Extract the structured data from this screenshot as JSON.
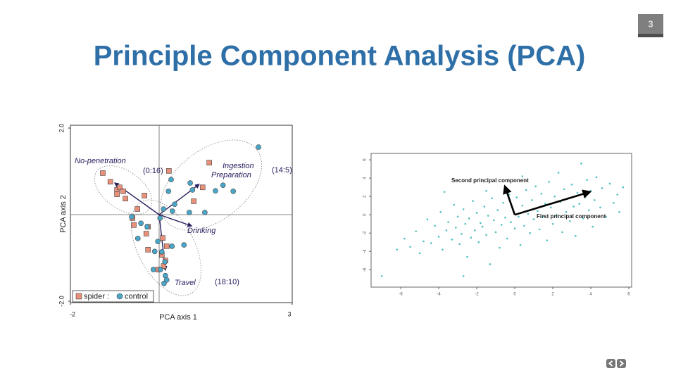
{
  "slide": {
    "page_number": "3",
    "title": "Principle Component Analysis (PCA)"
  },
  "chart_data": [
    {
      "type": "scatter",
      "xlabel": "PCA axis 1",
      "ylabel": "PCA axis 2",
      "xlim": [
        -2,
        3
      ],
      "ylim": [
        -2,
        2
      ],
      "xticks": [
        -2,
        3
      ],
      "yticks": [
        {
          "value": -2,
          "label": "-2.0"
        },
        {
          "value": 2,
          "label": "2.0"
        }
      ],
      "series": [
        {
          "name": "spider :",
          "color": "#e8907a",
          "marker": "square",
          "x": [
            -1.27,
            -1.1,
            -0.95,
            -0.89,
            -0.81,
            -0.76,
            -0.95,
            -0.33,
            -0.49,
            -0.6,
            -0.57,
            -0.25,
            -0.29,
            -0.25,
            0.06,
            0.14,
            0.17,
            0.08,
            0.22,
            0.78,
            0.98,
            1.13,
            0.1,
            -0.02
          ],
          "y": [
            0.96,
            0.76,
            0.57,
            0.63,
            0.54,
            0.37,
            0.47,
            0.44,
            0.13,
            -0.08,
            -0.24,
            -0.28,
            -0.44,
            -0.81,
            -0.93,
            -1.06,
            -0.73,
            -0.54,
            1.01,
            0.31,
            0.63,
            1.2,
            -1.19,
            -1.27
          ]
        },
        {
          "name": "control",
          "color": "#4aa6c8",
          "marker": "circle",
          "x": [
            2.24,
            0.27,
            0.7,
            1.27,
            1.44,
            1.67,
            0.75,
            0.21,
            0.35,
            0.1,
            0.3,
            0.68,
            1.03,
            0.02,
            -0.62,
            -0.41,
            -0.27,
            -0.48,
            -0.03,
            0.56,
            0.29,
            -0.1,
            0.06,
            0.13,
            -0.13,
            0.03,
            0.14,
            0.17,
            0.11
          ],
          "y": [
            1.56,
            0.81,
            0.73,
            0.55,
            0.68,
            0.54,
            0.57,
            0.54,
            0.24,
            0.13,
            0.08,
            0.05,
            0.05,
            -0.08,
            -0.05,
            -0.2,
            -0.28,
            -0.55,
            -0.62,
            -0.7,
            -0.73,
            -0.85,
            -0.86,
            -1.09,
            -1.27,
            -1.27,
            -1.41,
            -1.51,
            -1.59
          ]
        }
      ],
      "vectors": [
        {
          "label_lines": [
            "No-penetration"
          ],
          "x": -1.0,
          "y": 0.73
        },
        {
          "label_lines": [
            "Ingestion",
            "Preparation"
          ],
          "x": 0.9,
          "y": 0.7
        },
        {
          "label_lines": [
            "Drinking"
          ],
          "x": 0.73,
          "y": -0.26
        },
        {
          "label_lines": [
            "Travel"
          ],
          "x": 0.14,
          "y": -1.28
        }
      ],
      "annotations": [
        "(0:16)",
        "(14:5)",
        "(18:10)"
      ],
      "vector_color": "#2a2060"
    },
    {
      "type": "scatter",
      "xlim": [
        -7.56,
        6.15
      ],
      "ylim": [
        -7.9,
        6.7
      ],
      "xticks": [
        -6,
        -4,
        -2,
        0,
        2,
        4,
        6
      ],
      "yticks": [
        -6,
        -4,
        -2,
        0,
        2,
        4,
        6
      ],
      "color": "#4fbfbf",
      "x": [
        -7,
        -6.2,
        -5.8,
        -5.5,
        -5.2,
        -5,
        -4.8,
        -4.6,
        -4.4,
        -4.2,
        -4,
        -3.9,
        -3.8,
        -3.6,
        -3.5,
        -3.3,
        -3.2,
        -3.1,
        -3,
        -2.9,
        -2.8,
        -2.7,
        -2.6,
        -2.5,
        -2.4,
        -2.3,
        -2.2,
        -2.1,
        -2,
        -1.9,
        -1.8,
        -1.7,
        -1.6,
        -1.5,
        -1.4,
        -1.3,
        -1.2,
        -1.1,
        -1,
        -0.9,
        -0.8,
        -0.7,
        -0.6,
        -0.5,
        -0.4,
        -0.3,
        -0.2,
        -0.1,
        0,
        0.1,
        0.2,
        0.3,
        0.4,
        0.5,
        0.6,
        0.7,
        0.8,
        0.9,
        1,
        1.1,
        1.2,
        1.3,
        1.4,
        1.5,
        1.6,
        1.7,
        1.8,
        1.9,
        2,
        2.1,
        2.2,
        2.3,
        2.4,
        2.5,
        2.6,
        2.7,
        2.8,
        2.9,
        3,
        3.1,
        3.2,
        3.3,
        3.4,
        3.5,
        3.6,
        3.7,
        3.8,
        3.9,
        4,
        4.1,
        4.2,
        4.3,
        4.5,
        4.6,
        4.8,
        5,
        5.2,
        5.4,
        5.5,
        5.7,
        -3.7,
        -1.5,
        0.4,
        -2.7
      ],
      "y": [
        -6.7,
        -3.8,
        -2.6,
        -3.5,
        -1.8,
        -4.2,
        -2.9,
        -0.5,
        -3.1,
        -1.2,
        -2.4,
        0.3,
        -3.8,
        -1.7,
        -0.8,
        -2.7,
        1.1,
        -1.4,
        -0.2,
        -3.2,
        -2.1,
        0.6,
        -1,
        -4.6,
        -0.4,
        -2.5,
        1.5,
        -1.7,
        0.2,
        -3,
        -0.9,
        -1.3,
        0.9,
        -2.2,
        -0.1,
        -5.4,
        1.8,
        -0.6,
        -1.9,
        0.5,
        -3.6,
        -1.1,
        1.3,
        -0.3,
        -2.6,
        2.2,
        -0.8,
        0.7,
        -1.5,
        1.9,
        -0.2,
        -3.3,
        1,
        -1.2,
        2.7,
        0.1,
        -2,
        1.6,
        -0.5,
        3.1,
        0.4,
        -1.6,
        2.3,
        -0.2,
        1.2,
        -2.8,
        3.6,
        0.8,
        -1,
        2,
        -0.1,
        4.6,
        1.4,
        -1.9,
        2.8,
        0.3,
        1.8,
        -0.7,
        3.3,
        0.9,
        -2.3,
        2.4,
        1.2,
        5.6,
        -0.4,
        1.9,
        3.8,
        0.5,
        2.6,
        -1.3,
        1.6,
        4.1,
        0.8,
        2.9,
        -0.2,
        3.4,
        1.3,
        2.2,
        0.3,
        3,
        2.5,
        2.6,
        4.2,
        -6.7
      ],
      "vectors": [
        {
          "label": "Second principal component",
          "x": -0.52,
          "y": 3.1
        },
        {
          "label": "First principal component",
          "x": 3.96,
          "y": 2.5
        }
      ],
      "vector_color": "#000000"
    }
  ]
}
